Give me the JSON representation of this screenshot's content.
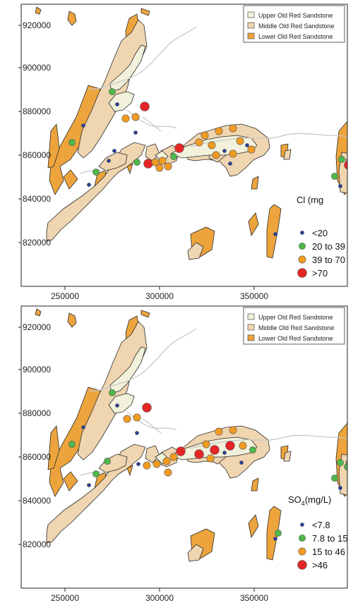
{
  "colors": {
    "upper": "#f2f2dc",
    "middle": "#efd5b0",
    "lower": "#eda43c",
    "outline": "#2a2a2a",
    "river": "#c8c8c8",
    "blue": "#2c3e9a",
    "green": "#4fb84a",
    "orange": "#f29b22",
    "red": "#e52626"
  },
  "formation_legend": [
    "Upper Old Red Sandstone",
    "Middle Old Red Sandstone",
    "Lower Old Red Sandstone"
  ],
  "x_ticks": [
    "250000",
    "300000",
    "350000"
  ],
  "y_ticks": [
    "920000",
    "900000",
    "880000",
    "860000",
    "840000",
    "820000"
  ],
  "panels": [
    {
      "legend_title": "Cl  (mg",
      "classes": [
        {
          "label": "<20",
          "color": "blue"
        },
        {
          "label": "20 to 39",
          "color": "green"
        },
        {
          "label": "39 to 70",
          "color": "orange"
        },
        {
          "label": ">70",
          "color": "red"
        }
      ]
    },
    {
      "legend_title_main": "SO",
      "legend_title_sub": "4",
      "legend_title_rest": "(mg/L)",
      "classes": [
        {
          "label": "<7.8",
          "color": "blue"
        },
        {
          "label": "7.8 to 15",
          "color": "green"
        },
        {
          "label": "15 to 46",
          "color": "orange"
        },
        {
          "label": ">46",
          "color": "red"
        }
      ]
    }
  ]
}
